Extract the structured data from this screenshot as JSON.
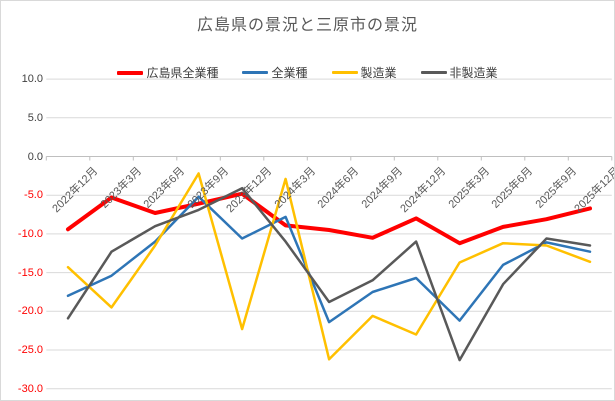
{
  "chart_data": {
    "type": "line",
    "title": "広島県の景況と三原市の景況",
    "categories": [
      "2022年12月",
      "2023年3月",
      "2023年6月",
      "2023年9月",
      "2023年12月",
      "2024年3月",
      "2024年6月",
      "2024年9月",
      "2024年12月",
      "2025年3月",
      "2025年6月",
      "2025年9月",
      "2025年12月"
    ],
    "series": [
      {
        "name": "広島県全業種",
        "color": "#FF0000",
        "line_width": 4,
        "values": [
          -9.4,
          -5.3,
          -7.3,
          -6.1,
          -4.8,
          -8.9,
          -9.5,
          -10.5,
          -8.0,
          -11.2,
          -9.1,
          -8.1,
          -6.7
        ]
      },
      {
        "name": "全業種",
        "color": "#2E75B6",
        "line_width": 2.5,
        "values": [
          -18.0,
          -15.4,
          -11.0,
          -5.2,
          -10.6,
          -7.8,
          -21.4,
          -17.5,
          -15.7,
          -21.2,
          -14.0,
          -11.1,
          -12.3
        ]
      },
      {
        "name": "製造業",
        "color": "#FFC000",
        "line_width": 2.5,
        "values": [
          -14.3,
          -19.5,
          -11.5,
          -2.2,
          -22.3,
          -2.9,
          -26.2,
          -20.6,
          -23.0,
          -13.7,
          -11.2,
          -11.5,
          -13.6
        ]
      },
      {
        "name": "非製造業",
        "color": "#595959",
        "line_width": 2.5,
        "values": [
          -20.9,
          -12.3,
          -9.0,
          -6.9,
          -4.1,
          -11.0,
          -18.8,
          -16.0,
          -11.0,
          -26.3,
          -16.5,
          -10.6,
          -11.5
        ]
      }
    ],
    "ytick_labels": [
      "10.0",
      "5.0",
      "0.0",
      "-5.0",
      "-10.0",
      "-15.0",
      "-20.0",
      "-25.0",
      "-30.0"
    ],
    "ylim": [
      -30,
      10
    ],
    "xlabel": "",
    "ylabel": "",
    "grid": true,
    "legend_position": "top",
    "colors": {
      "grid": "#D9D9D9",
      "axis": "#BFBFBF",
      "title": "#595959",
      "x_tick_label": "#595959",
      "y_tick_label": "#404040",
      "y_tick_label_negative": "#FF0000"
    }
  }
}
